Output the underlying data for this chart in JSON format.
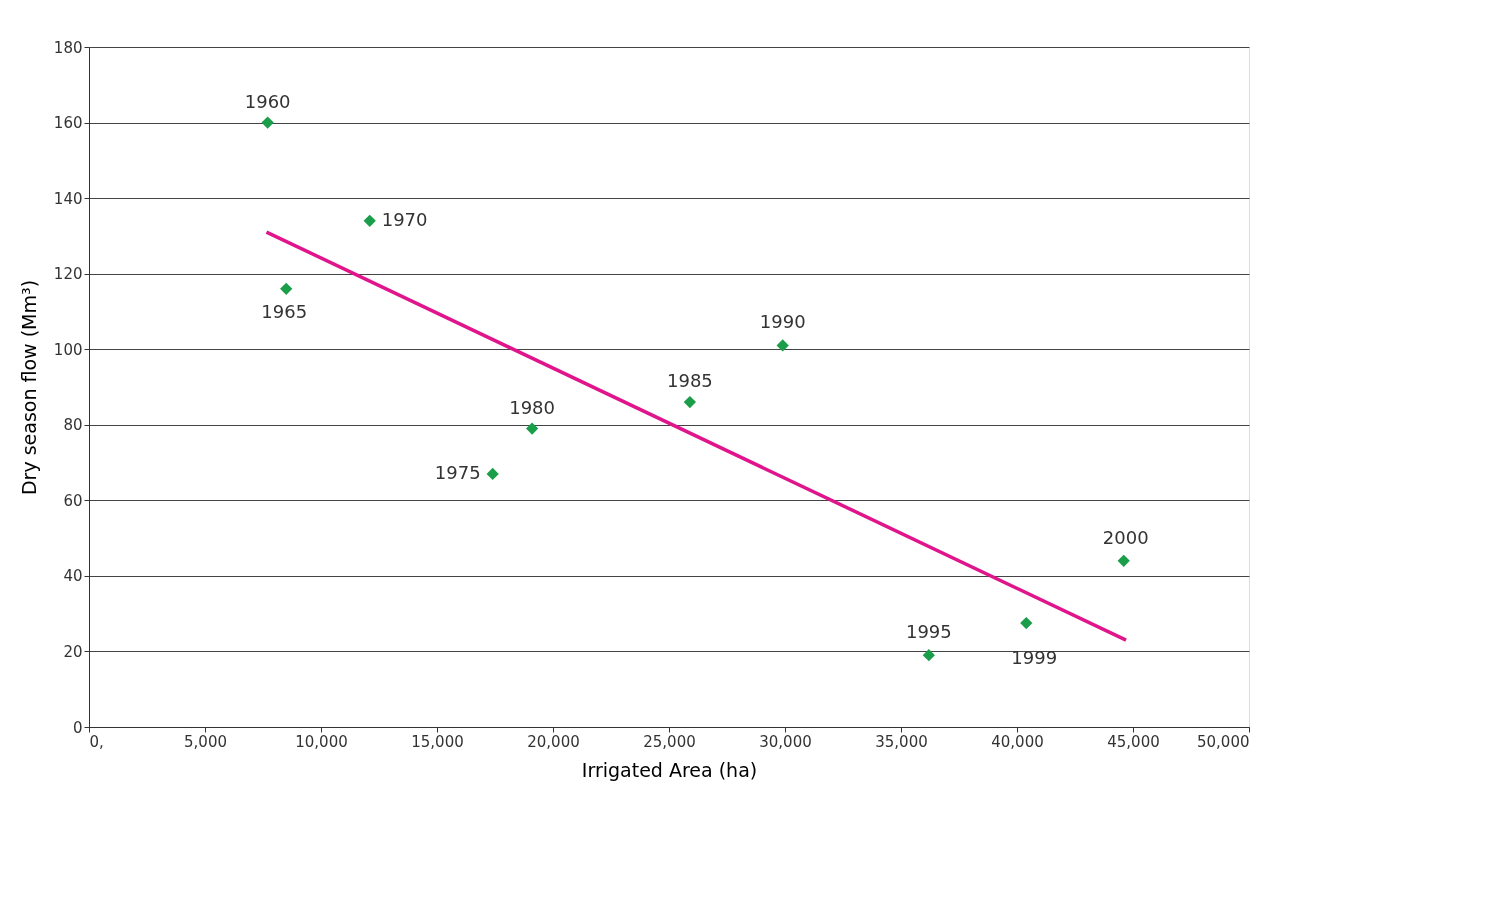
{
  "chart_data": {
    "type": "scatter",
    "xlabel": "Irrigated Area (ha)",
    "ylabel": "Dry season flow (Mm³)",
    "xlim": [
      0,
      50000
    ],
    "xticks": [
      {
        "value": 0,
        "label": "0,"
      },
      {
        "value": 5000,
        "label": "5,000"
      },
      {
        "value": 10000,
        "label": "10,000"
      },
      {
        "value": 15000,
        "label": "15,000"
      },
      {
        "value": 20000,
        "label": "20,000"
      },
      {
        "value": 25000,
        "label": "25,000"
      },
      {
        "value": 30000,
        "label": "30,000"
      },
      {
        "value": 35000,
        "label": "35,000"
      },
      {
        "value": 40000,
        "label": "40,000"
      },
      {
        "value": 45000,
        "label": "45,000"
      },
      {
        "value": 50000,
        "label": "50,000"
      }
    ],
    "ylim": [
      0,
      180
    ],
    "yticks": [
      0,
      20,
      40,
      60,
      80,
      100,
      120,
      140,
      160,
      180
    ],
    "grid": "y",
    "x": [
      7700,
      8500,
      12100,
      17400,
      19100,
      25900,
      29900,
      36200,
      40400,
      44600
    ],
    "series": [
      {
        "color": "#1a9e4a",
        "marker": "diamond",
        "values": [
          160,
          116,
          134,
          67,
          79,
          86,
          101,
          19,
          27.5,
          44
        ]
      },
      {
        "type": "line",
        "color": "#e0158c",
        "line_style": "solid",
        "marker": "none",
        "x": [
          7650,
          44700
        ],
        "values": [
          131,
          23
        ]
      }
    ],
    "annotations": [
      {
        "text": "1960",
        "x": 7700,
        "y": 160
      },
      {
        "text": "1965",
        "x": 8500,
        "y": 116
      },
      {
        "text": "1970",
        "x": 12100,
        "y": 134
      },
      {
        "text": "1975",
        "x": 17400,
        "y": 67
      },
      {
        "text": "1980",
        "x": 19100,
        "y": 79
      },
      {
        "text": "1985",
        "x": 25900,
        "y": 86
      },
      {
        "text": "1990",
        "x": 29900,
        "y": 101
      },
      {
        "text": "1995",
        "x": 36200,
        "y": 19
      },
      {
        "text": "1999",
        "x": 40400,
        "y": 27.5
      },
      {
        "text": "2000",
        "x": 44600,
        "y": 44
      }
    ]
  }
}
